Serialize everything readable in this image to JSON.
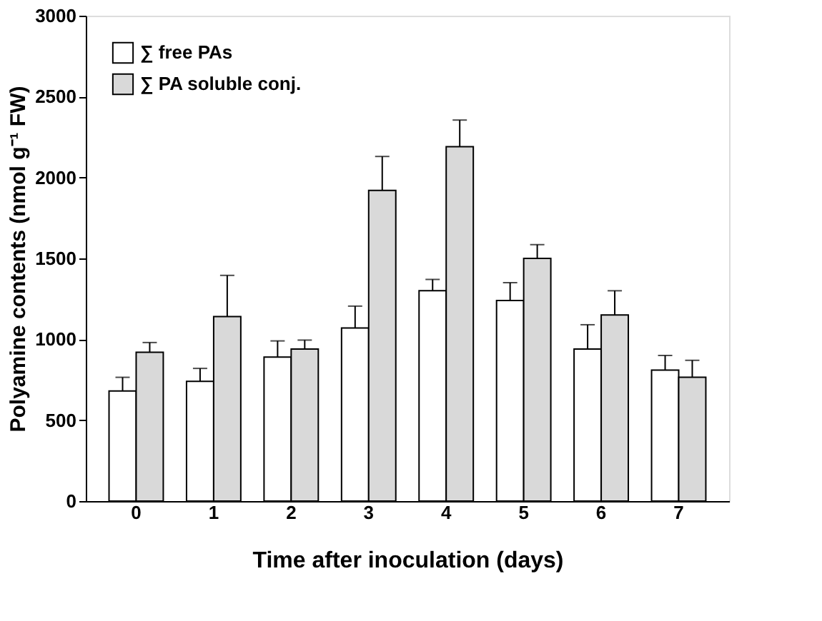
{
  "chart_data": {
    "type": "bar",
    "xlabel": "Time after inoculation (days)",
    "ylabel": "Polyamine contents (nmol g⁻¹ FW)",
    "categories": [
      "0",
      "1",
      "2",
      "3",
      "4",
      "5",
      "6",
      "7"
    ],
    "series": [
      {
        "name": "∑ free PAs",
        "color": "#ffffff",
        "values": [
          680,
          740,
          890,
          1070,
          1300,
          1240,
          940,
          810
        ],
        "errors": [
          [
            680,
            765
          ],
          [
            740,
            820
          ],
          [
            890,
            990
          ],
          [
            1070,
            1205
          ],
          [
            1300,
            1370
          ],
          [
            1240,
            1350
          ],
          [
            940,
            1090
          ],
          [
            810,
            900
          ]
        ]
      },
      {
        "name": "∑ PA soluble conj.",
        "color": "#d9d9d9",
        "values": [
          920,
          1140,
          940,
          1920,
          2190,
          1500,
          1150,
          765
        ],
        "errors": [
          [
            920,
            980
          ],
          [
            1140,
            1395
          ],
          [
            940,
            995
          ],
          [
            1920,
            2130
          ],
          [
            2190,
            2355
          ],
          [
            1500,
            1585
          ],
          [
            1150,
            1300
          ],
          [
            765,
            870
          ]
        ]
      }
    ],
    "ylim": [
      0,
      3000
    ],
    "yticks": [
      0,
      500,
      1000,
      1500,
      2000,
      2500,
      3000
    ],
    "grid": false,
    "legend": "top left"
  }
}
